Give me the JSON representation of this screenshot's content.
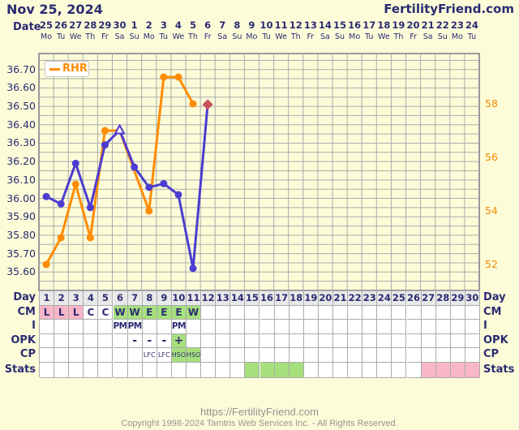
{
  "header": {
    "title_left": "Nov 25, 2024",
    "title_right": "FertilityFriend.com",
    "date_label": "Date",
    "dates": [
      "25",
      "26",
      "27",
      "28",
      "29",
      "30",
      "1",
      "2",
      "3",
      "4",
      "5",
      "6",
      "7",
      "8",
      "9",
      "10",
      "11",
      "12",
      "13",
      "14",
      "15",
      "16",
      "17",
      "18",
      "19",
      "20",
      "21",
      "22",
      "23",
      "24"
    ],
    "days_of_week": [
      "Mo",
      "Tu",
      "We",
      "Th",
      "Fr",
      "Sa",
      "Su",
      "Mo",
      "Tu",
      "We",
      "Th",
      "Fr",
      "Sa",
      "Su",
      "Mo",
      "Tu",
      "We",
      "Th",
      "Fr",
      "Sa",
      "Su",
      "Mo",
      "Tu",
      "We",
      "Th",
      "Fr",
      "Sa",
      "Su",
      "Mo",
      "Tu"
    ]
  },
  "chart_data": {
    "type": "line",
    "legend": {
      "label": "RHR",
      "position": "top-left"
    },
    "left_axis": {
      "ticks": [
        "36.70",
        "36.60",
        "36.50",
        "36.40",
        "36.30",
        "36.20",
        "36.10",
        "36.00",
        "35.90",
        "35.80",
        "35.70",
        "35.60"
      ],
      "min": 35.5,
      "max": 36.79,
      "gridline_step": 0.05
    },
    "right_axis": {
      "ticks": [
        "58",
        "56",
        "54",
        "52"
      ],
      "min": 51.0,
      "max": 59.9
    },
    "x_axis": {
      "days": 30
    },
    "series": [
      {
        "name": "RHR",
        "axis": "right",
        "color": "#FF8C00",
        "points": [
          [
            1,
            52
          ],
          [
            2,
            53
          ],
          [
            3,
            55
          ],
          [
            4,
            53
          ],
          [
            5,
            57
          ],
          [
            6,
            57
          ],
          [
            8,
            54
          ],
          [
            9,
            59
          ],
          [
            10,
            59
          ],
          [
            11,
            58
          ]
        ]
      },
      {
        "name": "Temperature",
        "axis": "left",
        "color": "#4C3CD0",
        "points": [
          [
            1,
            36.01
          ],
          [
            2,
            35.97
          ],
          [
            3,
            36.19
          ],
          [
            4,
            35.95
          ],
          [
            5,
            36.29
          ],
          [
            6,
            36.37
          ],
          [
            7,
            36.17
          ],
          [
            8,
            36.06
          ],
          [
            9,
            36.08
          ],
          [
            10,
            36.02
          ],
          [
            11,
            35.62
          ],
          [
            12,
            36.51
          ]
        ],
        "special_markers": {
          "6": "open-triangle",
          "12": "red-diamond"
        }
      }
    ],
    "marker_colors": {
      "red_diamond": "#C9515C",
      "open_triangle_fill": "#FFFFFF"
    }
  },
  "table": {
    "row_labels": [
      "Day",
      "CM",
      "I",
      "OPK",
      "CP",
      "Stats"
    ],
    "days": [
      "1",
      "2",
      "3",
      "4",
      "5",
      "6",
      "7",
      "8",
      "9",
      "10",
      "11",
      "12",
      "13",
      "14",
      "15",
      "16",
      "17",
      "18",
      "19",
      "20",
      "21",
      "22",
      "23",
      "24",
      "25",
      "26",
      "27",
      "28",
      "29",
      "30"
    ],
    "cm": [
      {
        "day": 1,
        "text": "L",
        "bg": "pink"
      },
      {
        "day": 2,
        "text": "L",
        "bg": "pink"
      },
      {
        "day": 3,
        "text": "L",
        "bg": "pink"
      },
      {
        "day": 4,
        "text": "C",
        "bg": "white"
      },
      {
        "day": 5,
        "text": "C",
        "bg": "white"
      },
      {
        "day": 6,
        "text": "W",
        "bg": "green"
      },
      {
        "day": 7,
        "text": "W",
        "bg": "green"
      },
      {
        "day": 8,
        "text": "E",
        "bg": "green"
      },
      {
        "day": 9,
        "text": "E",
        "bg": "green"
      },
      {
        "day": 10,
        "text": "E",
        "bg": "green"
      },
      {
        "day": 11,
        "text": "W",
        "bg": "green"
      }
    ],
    "intercourse": [
      {
        "day": 6,
        "text": "PM"
      },
      {
        "day": 7,
        "text": "PM"
      },
      {
        "day": 10,
        "text": "PM"
      }
    ],
    "opk": [
      {
        "day": 7,
        "text": "-"
      },
      {
        "day": 8,
        "text": "-"
      },
      {
        "day": 9,
        "text": "-"
      },
      {
        "day": 10,
        "text": "+",
        "bg": "green"
      }
    ],
    "cp": [
      {
        "day": 8,
        "text": "LFC"
      },
      {
        "day": 9,
        "text": "LFC"
      },
      {
        "day": 10,
        "text": "HSO",
        "bg": "green"
      },
      {
        "day": 11,
        "text": "HSO",
        "bg": "green"
      }
    ],
    "stats": [
      {
        "day": 15,
        "bg": "green"
      },
      {
        "day": 16,
        "bg": "green"
      },
      {
        "day": 17,
        "bg": "green"
      },
      {
        "day": 18,
        "bg": "green"
      },
      {
        "day": 27,
        "bg": "pink"
      },
      {
        "day": 28,
        "bg": "pink"
      },
      {
        "day": 29,
        "bg": "pink"
      },
      {
        "day": 30,
        "bg": "pink"
      }
    ]
  },
  "footer": {
    "line1": "https://FertilityFriend.com",
    "line2": "Copyright 1998-2024 Tamtris Web Services Inc. - All Rights Reserved."
  },
  "colors": {
    "background": "#FCFCD9",
    "grid": "#ABABAB",
    "navy_text": "#2B2B72",
    "rhr_orange": "#FF8C00",
    "temp_blue": "#4C3CD0",
    "diamond_red": "#C9515C",
    "cell_pink": "#F8B6C6",
    "cell_green": "#A6E07D",
    "cell_gray": "#E9E9E9",
    "footer_gray": "#949494"
  }
}
